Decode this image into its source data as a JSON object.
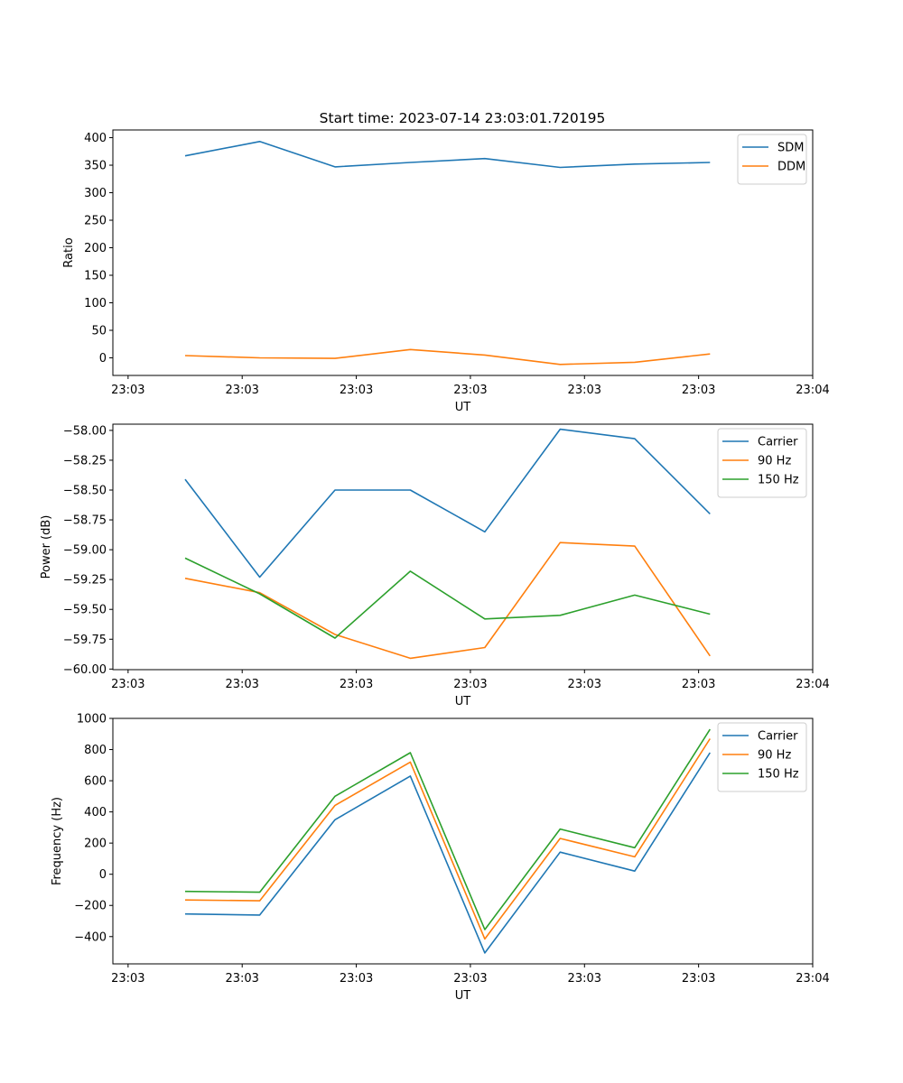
{
  "figure_title": "Start time: 2023-07-14 23:03:01.720195",
  "chart_data": [
    {
      "type": "line",
      "title": "Start time: 2023-07-14 23:03:01.720195",
      "xlabel": "UT",
      "ylabel": "Ratio",
      "xlim": [
        -0.2,
        9.0
      ],
      "ylim": [
        -32,
        414
      ],
      "yticks": [
        0,
        50,
        100,
        150,
        200,
        250,
        300,
        350,
        400
      ],
      "ytick_labels": [
        "0",
        "50",
        "100",
        "150",
        "200",
        "250",
        "300",
        "350",
        "400"
      ],
      "xticks": [
        0,
        1.5,
        3,
        4.5,
        6,
        7.5,
        9
      ],
      "xtick_labels": [
        "23:03",
        "23:03",
        "23:03",
        "23:03",
        "23:03",
        "23:03",
        "23:04"
      ],
      "x": [
        0.75,
        1.73,
        2.72,
        3.71,
        4.69,
        5.68,
        6.66,
        7.65
      ],
      "legend_position": "top-right",
      "series": [
        {
          "name": "SDM",
          "color": "#1f77b4",
          "values": [
            367,
            393,
            347,
            355,
            362,
            346,
            352,
            355
          ]
        },
        {
          "name": "DDM",
          "color": "#ff7f0e",
          "values": [
            4,
            0,
            -1,
            15,
            5,
            -12,
            -8,
            7
          ]
        }
      ]
    },
    {
      "type": "line",
      "title": "",
      "xlabel": "UT",
      "ylabel": "Power (dB)",
      "xlim": [
        -0.2,
        9.0
      ],
      "ylim": [
        -60.005,
        -57.948
      ],
      "yticks": [
        -60.0,
        -59.75,
        -59.5,
        -59.25,
        -59.0,
        -58.75,
        -58.5,
        -58.25,
        -58.0
      ],
      "ytick_labels": [
        "−60.00",
        "−59.75",
        "−59.50",
        "−59.25",
        "−59.00",
        "−58.75",
        "−58.50",
        "−58.25",
        "−58.00"
      ],
      "xticks": [
        0,
        1.5,
        3,
        4.5,
        6,
        7.5,
        9
      ],
      "xtick_labels": [
        "23:03",
        "23:03",
        "23:03",
        "23:03",
        "23:03",
        "23:03",
        "23:04"
      ],
      "x": [
        0.75,
        1.73,
        2.72,
        3.71,
        4.69,
        5.68,
        6.66,
        7.65
      ],
      "legend_position": "top-right",
      "series": [
        {
          "name": "Carrier",
          "color": "#1f77b4",
          "values": [
            -58.41,
            -59.23,
            -58.5,
            -58.5,
            -58.85,
            -57.99,
            -58.07,
            -58.7
          ]
        },
        {
          "name": "90 Hz",
          "color": "#ff7f0e",
          "values": [
            -59.24,
            -59.36,
            -59.71,
            -59.91,
            -59.82,
            -58.94,
            -58.97,
            -59.89
          ]
        },
        {
          "name": "150 Hz",
          "color": "#2ca02c",
          "values": [
            -59.07,
            -59.37,
            -59.74,
            -59.18,
            -59.58,
            -59.55,
            -59.38,
            -59.54
          ]
        }
      ]
    },
    {
      "type": "line",
      "title": "",
      "xlabel": "UT",
      "ylabel": "Frequency (Hz)",
      "xlim": [
        -0.2,
        9.0
      ],
      "ylim": [
        -575,
        1000
      ],
      "yticks": [
        -400,
        -200,
        0,
        200,
        400,
        600,
        800,
        1000
      ],
      "ytick_labels": [
        "−400",
        "−200",
        "0",
        "200",
        "400",
        "600",
        "800",
        "1000"
      ],
      "xticks": [
        0,
        1.5,
        3,
        4.5,
        6,
        7.5,
        9
      ],
      "xtick_labels": [
        "23:03",
        "23:03",
        "23:03",
        "23:03",
        "23:03",
        "23:03",
        "23:04"
      ],
      "x": [
        0.75,
        1.73,
        2.72,
        3.71,
        4.69,
        5.68,
        6.66,
        7.65
      ],
      "legend_position": "top-right",
      "series": [
        {
          "name": "Carrier",
          "color": "#1f77b4",
          "values": [
            -255,
            -262,
            350,
            630,
            -505,
            142,
            20,
            780
          ]
        },
        {
          "name": "90 Hz",
          "color": "#ff7f0e",
          "values": [
            -165,
            -170,
            442,
            720,
            -415,
            230,
            112,
            870
          ]
        },
        {
          "name": "150 Hz",
          "color": "#2ca02c",
          "values": [
            -110,
            -115,
            500,
            780,
            -355,
            290,
            170,
            930
          ]
        }
      ]
    }
  ]
}
